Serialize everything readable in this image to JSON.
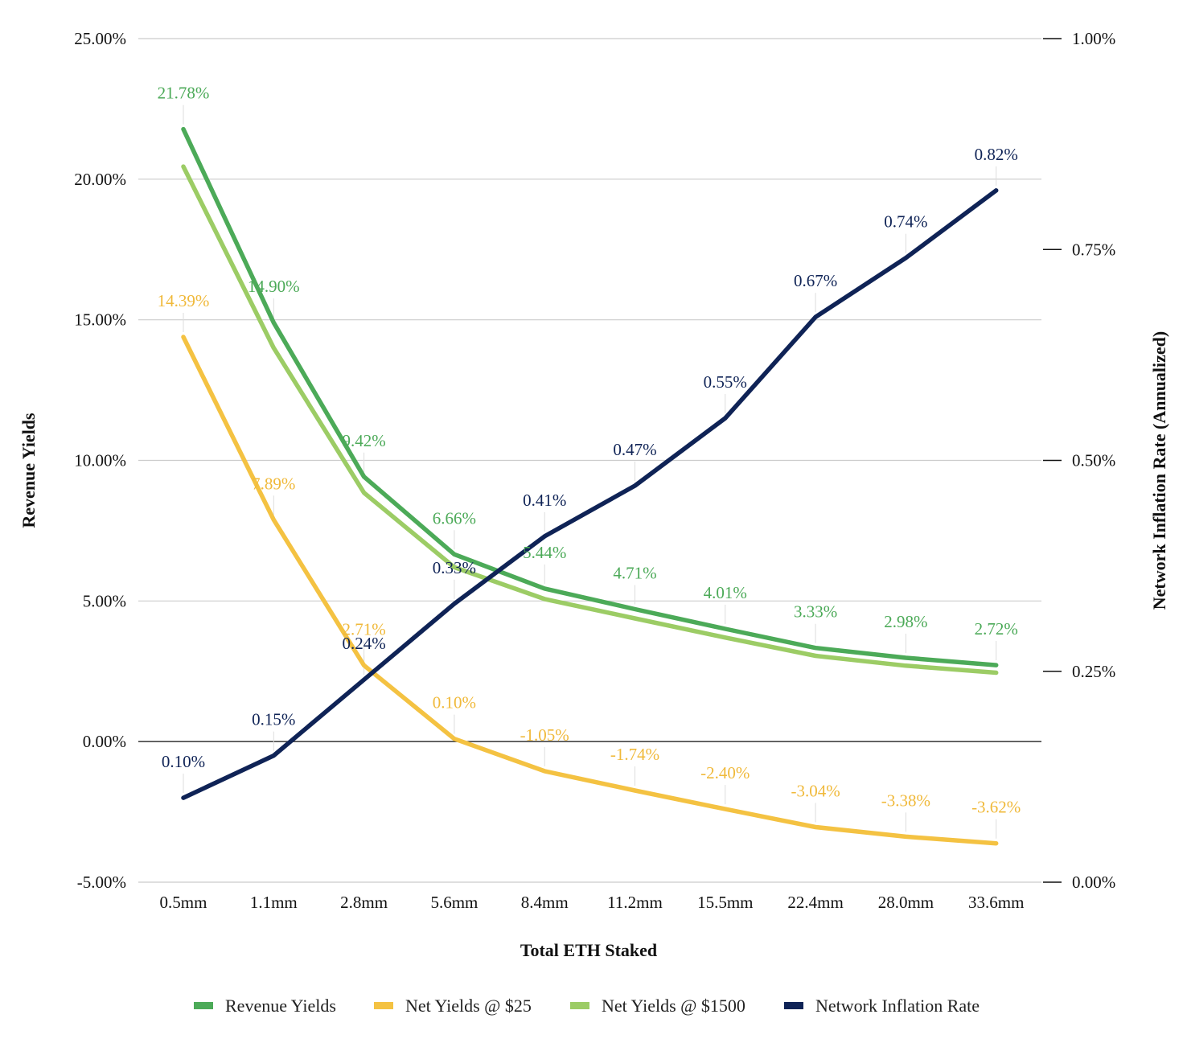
{
  "chart_data": {
    "type": "line",
    "xlabel": "Total ETH Staked",
    "ylabel": "Revenue Yields",
    "y2label": "Network Inflation Rate (Annualized)",
    "categories": [
      "0.5mm",
      "1.1mm",
      "2.8mm",
      "5.6mm",
      "8.4mm",
      "11.2mm",
      "15.5mm",
      "22.4mm",
      "28.0mm",
      "33.6mm"
    ],
    "ylim": [
      -5,
      25
    ],
    "yticks": [
      "25.00%",
      "20.00%",
      "15.00%",
      "10.00%",
      "5.00%",
      "0.00%",
      "-5.00%"
    ],
    "y2lim": [
      0,
      1
    ],
    "y2ticks": [
      "1.00%",
      "0.75%",
      "0.50%",
      "0.25%",
      "0.00%"
    ],
    "grid": true,
    "legend_position": "bottom",
    "series": [
      {
        "name": "Revenue Yields",
        "axis": "left",
        "color": "#4caa58",
        "values": [
          21.78,
          14.9,
          9.42,
          6.66,
          5.44,
          4.71,
          4.01,
          3.33,
          2.98,
          2.72
        ],
        "labels": [
          "21.78%",
          "14.90%",
          "9.42%",
          "6.66%",
          "5.44%",
          "4.71%",
          "4.01%",
          "3.33%",
          "2.98%",
          "2.72%"
        ]
      },
      {
        "name": "Net Yields @ $25",
        "axis": "left",
        "color": "#f4c242",
        "values": [
          14.39,
          7.89,
          2.71,
          0.1,
          -1.05,
          -1.74,
          -2.4,
          -3.04,
          -3.38,
          -3.62
        ],
        "labels": [
          "14.39%",
          "7.89%",
          "2.71%",
          "0.10%",
          "-1.05%",
          "-1.74%",
          "-2.40%",
          "-3.04%",
          "-3.38%",
          "-3.62%"
        ]
      },
      {
        "name": "Net Yields @ $1500",
        "axis": "left",
        "color": "#9ccc65",
        "values": [
          20.45,
          14.0,
          8.85,
          6.2,
          5.07,
          4.38,
          3.7,
          3.05,
          2.7,
          2.45
        ],
        "labels": []
      },
      {
        "name": "Network Inflation Rate",
        "axis": "right",
        "color": "#0f2356",
        "values": [
          0.1,
          0.15,
          0.24,
          0.33,
          0.41,
          0.47,
          0.55,
          0.67,
          0.74,
          0.82
        ],
        "labels": [
          "0.10%",
          "0.15%",
          "0.24%",
          "0.33%",
          "0.41%",
          "0.47%",
          "0.55%",
          "0.67%",
          "0.74%",
          "0.82%"
        ]
      }
    ]
  }
}
